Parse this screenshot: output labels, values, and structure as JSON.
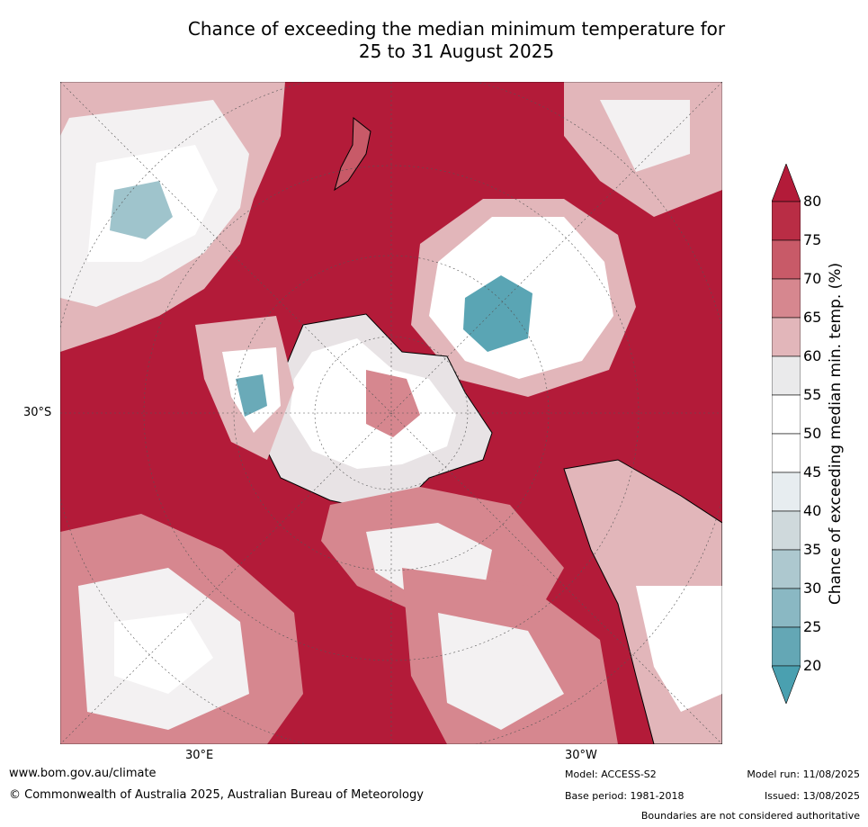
{
  "title_line1": "Chance of exceeding the median minimum temperature for",
  "title_line2": "25 to 31 August 2025",
  "map": {
    "projection": "south polar stereographic",
    "lat_label": "30°S",
    "lon_labels": [
      "30°E",
      "30°W"
    ],
    "ocean_color": "#b31b39",
    "colorbar_label": "Chance of exceeding median min. temp. (%)",
    "colorbar_ticks": [
      "80",
      "75",
      "70",
      "65",
      "60",
      "55",
      "50",
      "45",
      "40",
      "35",
      "30",
      "25",
      "20"
    ],
    "colorbar_colors": [
      "#b92d45",
      "#c85a68",
      "#d6878f",
      "#e2b6ba",
      "#eaeaeb",
      "#ffffff",
      "#ffffff",
      "#e7edf0",
      "#cfd9dc",
      "#adc8cf",
      "#8ab8c3",
      "#64a7b5"
    ],
    "colorbar_top_color": "#b31b39",
    "colorbar_bottom_color": "#4aa0b0"
  },
  "footer": {
    "url": "www.bom.gov.au/climate",
    "copyright": "© Commonwealth of Australia 2025, Australian Bureau of Meteorology",
    "model": "Model: ACCESS-S2",
    "base_period": "Base period: 1981-2018",
    "model_run": "Model run: 11/08/2025",
    "issued": "Issued: 13/08/2025",
    "disclaimer": "Boundaries are not considered authoritative"
  }
}
